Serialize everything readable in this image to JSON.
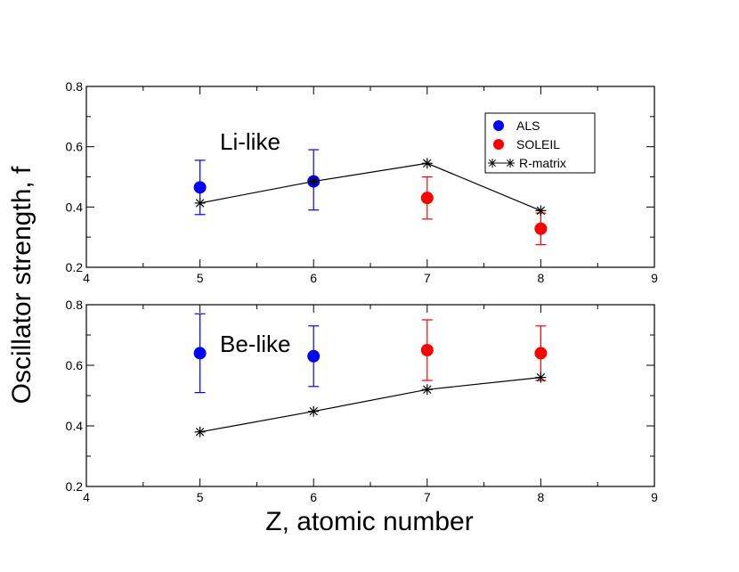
{
  "figure": {
    "ylabel": "Oscillator strength, f",
    "xlabel": "Z, atomic number"
  },
  "legend": {
    "entries": [
      {
        "label": "ALS",
        "color": "#0000ff",
        "marker": "circle"
      },
      {
        "label": "SOLEIL",
        "color": "#ff0000",
        "marker": "circle"
      },
      {
        "label": "R-matrix",
        "color": "#000000",
        "marker": "asterisk-line"
      }
    ],
    "placement": "top-right of upper panel"
  },
  "chart_data": [
    {
      "type": "scatter",
      "annotation": "Li-like",
      "xlim": [
        4,
        9
      ],
      "ylim": [
        0.2,
        0.8
      ],
      "xticks": [
        4,
        5,
        6,
        7,
        8,
        9
      ],
      "yticks": [
        0.2,
        0.4,
        0.6,
        0.8
      ],
      "grid": false,
      "series": [
        {
          "name": "ALS",
          "color": "#0000ff",
          "marker": "circle",
          "points": [
            {
              "x": 5,
              "y": 0.465,
              "err_low": 0.375,
              "err_high": 0.555
            },
            {
              "x": 6,
              "y": 0.485,
              "err_low": 0.39,
              "err_high": 0.59
            }
          ]
        },
        {
          "name": "SOLEIL",
          "color": "#ff0000",
          "marker": "circle",
          "points": [
            {
              "x": 7,
              "y": 0.43,
              "err_low": 0.36,
              "err_high": 0.5
            },
            {
              "x": 8,
              "y": 0.328,
              "err_low": 0.275,
              "err_high": 0.38
            }
          ]
        },
        {
          "name": "R-matrix",
          "color": "#000000",
          "marker": "asterisk",
          "line": true,
          "points": [
            {
              "x": 5,
              "y": 0.413
            },
            {
              "x": 6,
              "y": 0.485
            },
            {
              "x": 7,
              "y": 0.545
            },
            {
              "x": 8,
              "y": 0.388
            }
          ]
        }
      ]
    },
    {
      "type": "scatter",
      "annotation": "Be-like",
      "xlim": [
        4,
        9
      ],
      "ylim": [
        0.2,
        0.8
      ],
      "xticks": [
        4,
        5,
        6,
        7,
        8,
        9
      ],
      "yticks": [
        0.2,
        0.4,
        0.6,
        0.8
      ],
      "grid": false,
      "series": [
        {
          "name": "ALS",
          "color": "#0000ff",
          "marker": "circle",
          "points": [
            {
              "x": 5,
              "y": 0.64,
              "err_low": 0.51,
              "err_high": 0.77
            },
            {
              "x": 6,
              "y": 0.63,
              "err_low": 0.53,
              "err_high": 0.73
            }
          ]
        },
        {
          "name": "SOLEIL",
          "color": "#ff0000",
          "marker": "circle",
          "points": [
            {
              "x": 7,
              "y": 0.65,
              "err_low": 0.55,
              "err_high": 0.75
            },
            {
              "x": 8,
              "y": 0.64,
              "err_low": 0.55,
              "err_high": 0.73
            }
          ]
        },
        {
          "name": "R-matrix",
          "color": "#000000",
          "marker": "asterisk",
          "line": true,
          "points": [
            {
              "x": 5,
              "y": 0.38
            },
            {
              "x": 6,
              "y": 0.448
            },
            {
              "x": 7,
              "y": 0.52
            },
            {
              "x": 8,
              "y": 0.56
            }
          ]
        }
      ]
    }
  ]
}
